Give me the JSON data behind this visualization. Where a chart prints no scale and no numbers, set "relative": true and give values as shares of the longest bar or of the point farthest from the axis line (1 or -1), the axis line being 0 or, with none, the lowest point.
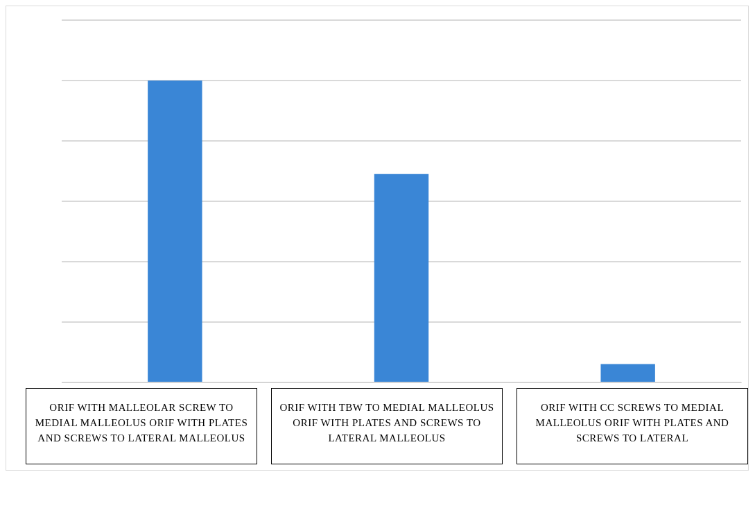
{
  "chart_data": {
    "type": "bar",
    "categories": [
      "ORIF WITH MALLEOLAR SCREW TO MEDIAL MALLEOLUS ORIF WITH PLATES AND SCREWS TO LATERAL MALLEOLUS",
      "ORIF WITH TBW TO MEDIAL MALLEOLUS ORIF WITH PLATES AND SCREWS TO LATERAL MALLEOLUS",
      "ORIF WITH CC SCREWS TO MEDIAL MALLEOLUS ORIF WITH PLATES AND SCREWS TO LATERAL"
    ],
    "values": [
      1,
      0.69,
      0.061
    ],
    "color": "#3a86d6",
    "relative": true,
    "grid": "y",
    "legend": false
  }
}
